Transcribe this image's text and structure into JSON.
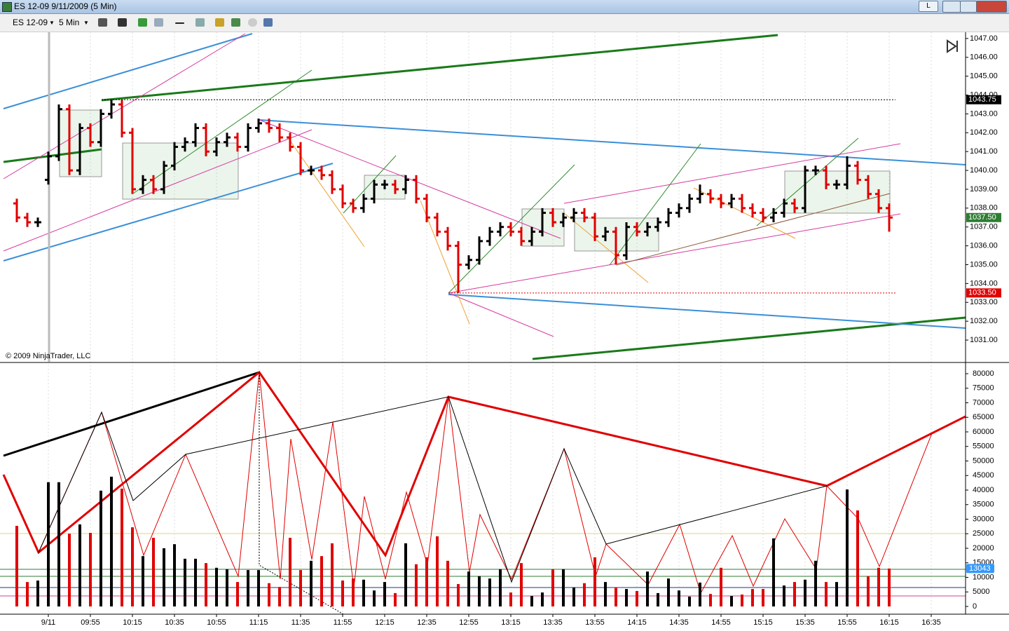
{
  "window": {
    "title": "ES 12-09  9/11/2009 (5 Min)",
    "button": "L"
  },
  "toolbar": {
    "instrument": "ES 12-09",
    "interval": "5 Min"
  },
  "chart_data": [
    {
      "type": "ohlc",
      "annotation": "© 2009 NinjaTrader, LLC",
      "up_color": "#000000",
      "down_color": "#e00000",
      "grid": "x",
      "ylim": [
        1029.96,
        1047.33
      ],
      "yticks": [
        {
          "value": 1031,
          "label": "1031.00"
        },
        {
          "value": 1032,
          "label": "1032.00"
        },
        {
          "value": 1033,
          "label": "1033.00"
        },
        {
          "value": 1034,
          "label": "1034.00"
        },
        {
          "value": 1035,
          "label": "1035.00"
        },
        {
          "value": 1036,
          "label": "1036.00"
        },
        {
          "value": 1037,
          "label": "1037.00"
        },
        {
          "value": 1038,
          "label": "1038.00"
        },
        {
          "value": 1039,
          "label": "1039.00"
        },
        {
          "value": 1040,
          "label": "1040.00"
        },
        {
          "value": 1041,
          "label": "1041.00"
        },
        {
          "value": 1042,
          "label": "1042.00"
        },
        {
          "value": 1043,
          "label": "1043.00"
        },
        {
          "value": 1044,
          "label": "1044.00"
        },
        {
          "value": 1045,
          "label": "1045.00"
        },
        {
          "value": 1046,
          "label": "1046.00"
        },
        {
          "value": 1047,
          "label": "1047.00"
        }
      ],
      "markers": [
        {
          "value": 1043.75,
          "label": "1043.75",
          "color": "#000000"
        },
        {
          "value": 1037.5,
          "label": "1037.50",
          "color": "#2e7d32"
        },
        {
          "value": 1033.5,
          "label": "1033.50",
          "color": "#e00000"
        }
      ],
      "open": [
        1038.25,
        1037.5,
        1037.25,
        1039.5,
        1040.75,
        1043.25,
        1040.0,
        1042.25,
        1041.5,
        1043.0,
        1043.5,
        1042.0,
        1039.0,
        1039.5,
        1039.0,
        1040.25,
        1041.25,
        1041.5,
        1042.25,
        1041.0,
        1041.5,
        1041.75,
        1041.25,
        1042.25,
        1042.5,
        1042.25,
        1041.75,
        1041.25,
        1040.0,
        1040.0,
        1039.75,
        1039.0,
        1038.25,
        1038.0,
        1038.5,
        1039.25,
        1039.25,
        1039.0,
        1039.5,
        1038.5,
        1037.5,
        1036.75,
        1036.0,
        1035.0,
        1035.25,
        1036.25,
        1036.75,
        1037.0,
        1036.75,
        1036.25,
        1036.75,
        1037.75,
        1037.25,
        1037.5,
        1037.75,
        1037.5,
        1036.5,
        1036.75,
        1035.5,
        1037.0,
        1036.75,
        1037.0,
        1037.25,
        1037.75,
        1038.0,
        1038.5,
        1038.75,
        1038.5,
        1038.25,
        1038.5,
        1038.0,
        1037.75,
        1037.5,
        1037.75,
        1038.25,
        1038.0,
        1040.0,
        1040.0,
        1039.25,
        1039.25,
        1040.25,
        1039.5,
        1038.75,
        1038.0,
        null,
        null,
        null,
        null
      ],
      "high": [
        1038.5,
        1037.75,
        1037.5,
        1041.0,
        1043.5,
        1043.5,
        1042.5,
        1042.5,
        1043.25,
        1043.75,
        1043.75,
        1042.25,
        1039.75,
        1039.75,
        1040.5,
        1041.5,
        1041.75,
        1042.5,
        1042.5,
        1041.75,
        1042.0,
        1042.0,
        1042.5,
        1042.75,
        1042.75,
        1042.5,
        1042.0,
        1041.5,
        1040.25,
        1040.25,
        1040.0,
        1039.25,
        1038.5,
        1038.75,
        1039.5,
        1039.5,
        1039.5,
        1039.75,
        1039.75,
        1038.75,
        1037.75,
        1037.0,
        1036.25,
        1035.5,
        1036.5,
        1037.0,
        1037.25,
        1037.25,
        1037.0,
        1037.0,
        1038.0,
        1038.0,
        1037.75,
        1038.0,
        1038.0,
        1037.75,
        1037.0,
        1037.0,
        1037.25,
        1037.25,
        1037.25,
        1037.5,
        1038.0,
        1038.25,
        1038.75,
        1039.25,
        1039.0,
        1038.75,
        1038.75,
        1038.75,
        1038.25,
        1038.0,
        1038.0,
        1038.5,
        1038.5,
        1040.25,
        1040.25,
        1040.25,
        1039.5,
        1040.75,
        1040.5,
        1039.75,
        1039.0,
        1038.25,
        null,
        null,
        null,
        null
      ],
      "low": [
        1037.25,
        1037.0,
        1037.0,
        1039.25,
        1040.5,
        1039.75,
        1039.75,
        1041.25,
        1041.25,
        1042.75,
        1041.75,
        1038.75,
        1038.75,
        1038.75,
        1038.75,
        1040.0,
        1041.0,
        1041.25,
        1040.75,
        1040.75,
        1041.25,
        1041.0,
        1041.0,
        1042.0,
        1042.0,
        1041.5,
        1041.0,
        1039.75,
        1039.75,
        1039.5,
        1038.75,
        1038.0,
        1037.75,
        1037.75,
        1038.25,
        1039.0,
        1038.75,
        1038.75,
        1038.25,
        1037.25,
        1036.5,
        1035.75,
        1033.5,
        1034.75,
        1035.0,
        1036.0,
        1036.5,
        1036.5,
        1036.0,
        1036.0,
        1036.5,
        1037.0,
        1037.0,
        1037.25,
        1037.25,
        1036.25,
        1036.25,
        1035.0,
        1035.25,
        1036.5,
        1036.5,
        1036.75,
        1037.0,
        1037.5,
        1037.75,
        1038.25,
        1038.25,
        1038.0,
        1038.0,
        1037.75,
        1037.5,
        1037.25,
        1037.25,
        1037.5,
        1037.75,
        1037.75,
        1039.75,
        1039.0,
        1039.0,
        1039.0,
        1039.25,
        1038.5,
        1037.75,
        1036.75,
        null,
        null,
        null,
        null
      ],
      "close": [
        1037.5,
        1037.25,
        1037.25,
        1040.75,
        1043.25,
        1040.0,
        1042.25,
        1041.5,
        1043.0,
        1043.5,
        1042.0,
        1039.0,
        1039.5,
        1039.0,
        1040.25,
        1041.25,
        1041.5,
        1042.25,
        1041.0,
        1041.5,
        1041.75,
        1041.25,
        1042.25,
        1042.5,
        1042.25,
        1041.75,
        1041.25,
        1040.0,
        1040.0,
        1039.75,
        1039.0,
        1038.25,
        1038.0,
        1038.5,
        1039.25,
        1039.25,
        1039.0,
        1039.5,
        1038.5,
        1037.5,
        1036.75,
        1036.0,
        1035.0,
        1035.25,
        1036.25,
        1036.75,
        1037.0,
        1036.75,
        1036.25,
        1036.75,
        1037.75,
        1037.25,
        1037.5,
        1037.75,
        1037.5,
        1036.5,
        1036.75,
        1035.5,
        1037.0,
        1036.75,
        1037.0,
        1037.25,
        1037.75,
        1038.0,
        1038.5,
        1038.75,
        1038.5,
        1038.25,
        1038.5,
        1038.0,
        1037.75,
        1037.5,
        1037.75,
        1038.25,
        1038.0,
        1040.0,
        1040.0,
        1039.25,
        1039.25,
        1040.25,
        1039.5,
        1038.75,
        1038.0,
        1037.5,
        null,
        null,
        null,
        null
      ]
    },
    {
      "type": "bar",
      "categories": [
        null,
        null,
        null,
        "9/11",
        null,
        null,
        null,
        "09:55",
        null,
        null,
        null,
        "10:15",
        null,
        null,
        null,
        "10:35",
        null,
        null,
        null,
        "10:55",
        null,
        null,
        null,
        "11:15",
        null,
        null,
        null,
        "11:35",
        null,
        null,
        null,
        "11:55",
        null,
        null,
        null,
        "12:15",
        null,
        null,
        null,
        "12:35",
        null,
        null,
        null,
        "12:55",
        null,
        null,
        null,
        "13:15",
        null,
        null,
        null,
        "13:35",
        null,
        null,
        null,
        "13:55",
        null,
        null,
        null,
        "14:15",
        null,
        null,
        null,
        "14:35",
        null,
        null,
        null,
        "14:55",
        null,
        null,
        null,
        "15:15",
        null,
        null,
        null,
        "15:35",
        null,
        null,
        null,
        "15:55",
        null,
        null,
        null,
        "16:15",
        null,
        null,
        null,
        "16:35"
      ],
      "values": [
        27700,
        8400,
        8900,
        42700,
        42700,
        25000,
        28200,
        25300,
        39800,
        44600,
        40500,
        27200,
        17300,
        23600,
        20000,
        21400,
        16400,
        16400,
        14900,
        13300,
        12800,
        8400,
        12500,
        12500,
        8000,
        6700,
        23600,
        12500,
        15700,
        17300,
        21700,
        8900,
        9600,
        9200,
        5500,
        8400,
        4600,
        21700,
        14500,
        16900,
        24100,
        15700,
        7700,
        12000,
        10400,
        9600,
        12800,
        4800,
        14900,
        3600,
        4800,
        12800,
        12800,
        6500,
        8000,
        16900,
        8400,
        6500,
        6000,
        5300,
        12000,
        4600,
        9600,
        5500,
        3400,
        8200,
        4300,
        13300,
        3600,
        4100,
        6000,
        6000,
        23400,
        7200,
        8400,
        9200,
        15700,
        8400,
        8400,
        40200,
        33000,
        10400,
        13300,
        13043,
        null,
        null,
        null,
        null
      ],
      "ylim": [
        -2410,
        83370
      ],
      "yticks": [
        0,
        5000,
        10000,
        15000,
        20000,
        25000,
        30000,
        35000,
        40000,
        45000,
        50000,
        55000,
        60000,
        65000,
        70000,
        75000,
        80000
      ],
      "markers": [
        {
          "value": 13043,
          "color": "#3399ff"
        }
      ]
    }
  ]
}
